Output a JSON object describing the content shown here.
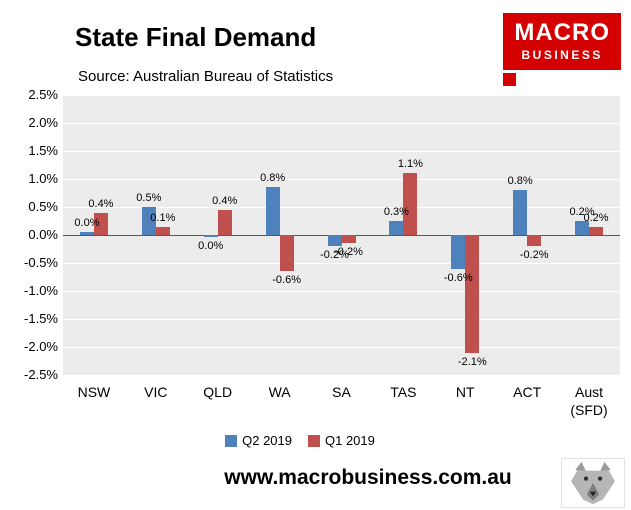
{
  "header": {
    "title": "State Final Demand",
    "subtitle": "Source: Australian Bureau of Statistics",
    "logo": {
      "line1": "MACRO",
      "line2": "BUSINESS",
      "color": "#d40000"
    }
  },
  "chart_data": {
    "type": "bar",
    "title": "State Final Demand",
    "xlabel": "",
    "ylabel": "",
    "ylim": [
      -2.5,
      2.5
    ],
    "ytick_step": 0.5,
    "ytick_labels": [
      "2.5%",
      "2.0%",
      "1.5%",
      "1.0%",
      "0.5%",
      "0.0%",
      "-0.5%",
      "-1.0%",
      "-1.5%",
      "-2.0%",
      "-2.5%"
    ],
    "grid": true,
    "legend_position": "bottom",
    "categories": [
      "NSW",
      "VIC",
      "QLD",
      "WA",
      "SA",
      "TAS",
      "NT",
      "ACT",
      "Aust\n(SFD)"
    ],
    "series": [
      {
        "name": "Q2 2019",
        "color": "#4f81bd",
        "values": [
          0.05,
          0.5,
          -0.03,
          0.85,
          -0.2,
          0.25,
          -0.6,
          0.8,
          0.25
        ],
        "labels": [
          "0.0%",
          "0.5%",
          "0.0%",
          "0.8%",
          "-0.2%",
          "0.3%",
          "-0.6%",
          "0.8%",
          "0.2%"
        ]
      },
      {
        "name": "Q1 2019",
        "color": "#c0504d",
        "values": [
          0.4,
          0.15,
          0.45,
          -0.65,
          -0.15,
          1.1,
          -2.1,
          -0.2,
          0.15
        ],
        "labels": [
          "0.4%",
          "0.1%",
          "0.4%",
          "-0.6%",
          "-0.2%",
          "1.1%",
          "-2.1%",
          "-0.2%",
          "0.2%"
        ]
      }
    ]
  },
  "legend": [
    {
      "label": "Q2 2019",
      "color": "#4f81bd"
    },
    {
      "label": "Q1 2019",
      "color": "#c0504d"
    }
  ],
  "footer": {
    "url": "www.macrobusiness.com.au"
  }
}
